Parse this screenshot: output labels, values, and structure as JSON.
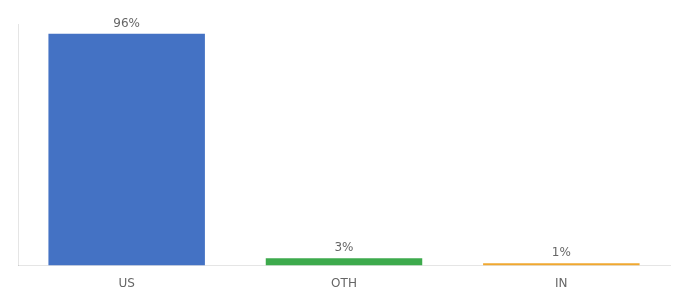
{
  "chart_data": {
    "type": "bar",
    "categories": [
      "US",
      "OTH",
      "IN"
    ],
    "values": [
      96,
      3,
      1
    ],
    "value_labels": [
      "96%",
      "3%",
      "1%"
    ],
    "colors": [
      "#4472c4",
      "#3daa4c",
      "#f0a830"
    ],
    "ylim": [
      0,
      100
    ],
    "grid": false,
    "data_labels": true,
    "tick_labels": "x"
  }
}
